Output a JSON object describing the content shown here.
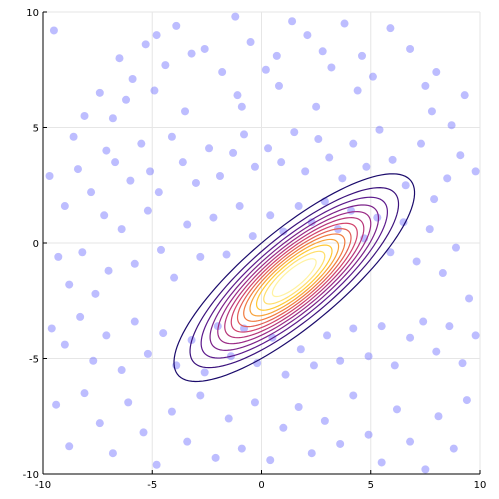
{
  "chart_data": {
    "type": "scatter",
    "title": "",
    "xlabel": "",
    "ylabel": "",
    "xlim": [
      -10,
      10
    ],
    "ylim": [
      -10,
      10
    ],
    "grid": true,
    "legend": "none",
    "x_ticks": [
      -10,
      -5,
      0,
      5,
      10
    ],
    "y_ticks": [
      -10,
      -5,
      0,
      5,
      10
    ],
    "x_tick_labels": [
      "-10",
      "-5",
      "0",
      "5",
      "10"
    ],
    "y_tick_labels": [
      "-10",
      "-5",
      "0",
      "5",
      "10"
    ],
    "point_color": "#5a5aff",
    "point_opacity": 0.4,
    "series": [
      {
        "values": [
          [
            -9.5,
            9.2
          ],
          [
            -8.6,
            4.6
          ],
          [
            -8.1,
            5.5
          ],
          [
            -7.4,
            6.5
          ],
          [
            -7.1,
            4.0
          ],
          [
            -6.5,
            8.0
          ],
          [
            -6.2,
            6.2
          ],
          [
            -5.9,
            7.1
          ],
          [
            -5.3,
            8.6
          ],
          [
            -4.8,
            9.0
          ],
          [
            -4.4,
            7.7
          ],
          [
            -3.9,
            9.4
          ],
          [
            -3.2,
            8.2
          ],
          [
            -2.6,
            8.4
          ],
          [
            -1.8,
            7.4
          ],
          [
            -1.2,
            9.8
          ],
          [
            -0.9,
            5.9
          ],
          [
            -0.5,
            8.7
          ],
          [
            0.2,
            7.5
          ],
          [
            0.7,
            8.1
          ],
          [
            1.4,
            9.6
          ],
          [
            2.1,
            9.0
          ],
          [
            2.8,
            8.3
          ],
          [
            3.2,
            7.6
          ],
          [
            3.8,
            9.5
          ],
          [
            4.6,
            8.1
          ],
          [
            5.1,
            7.2
          ],
          [
            5.9,
            9.3
          ],
          [
            6.8,
            8.4
          ],
          [
            7.5,
            6.8
          ],
          [
            8.0,
            7.4
          ],
          [
            8.7,
            5.1
          ],
          [
            9.3,
            6.4
          ],
          [
            9.8,
            3.1
          ],
          [
            -9.7,
            2.9
          ],
          [
            -9.0,
            1.6
          ],
          [
            -8.4,
            3.2
          ],
          [
            -7.8,
            2.2
          ],
          [
            -7.2,
            1.2
          ],
          [
            -6.7,
            3.5
          ],
          [
            -6.0,
            2.7
          ],
          [
            -5.5,
            4.3
          ],
          [
            -5.1,
            3.1
          ],
          [
            -4.7,
            2.2
          ],
          [
            -4.1,
            4.6
          ],
          [
            -3.6,
            3.5
          ],
          [
            -3.0,
            2.6
          ],
          [
            -2.4,
            4.1
          ],
          [
            -1.9,
            2.9
          ],
          [
            -1.3,
            3.9
          ],
          [
            -0.8,
            4.7
          ],
          [
            -0.3,
            3.3
          ],
          [
            0.3,
            4.1
          ],
          [
            0.9,
            3.5
          ],
          [
            1.5,
            4.8
          ],
          [
            2.0,
            3.1
          ],
          [
            2.6,
            4.5
          ],
          [
            3.1,
            3.7
          ],
          [
            3.7,
            2.8
          ],
          [
            4.2,
            4.3
          ],
          [
            4.8,
            3.3
          ],
          [
            5.4,
            4.9
          ],
          [
            6.0,
            3.6
          ],
          [
            6.6,
            2.5
          ],
          [
            7.3,
            4.3
          ],
          [
            7.9,
            1.9
          ],
          [
            8.5,
            2.8
          ],
          [
            9.1,
            3.8
          ],
          [
            -9.3,
            -0.6
          ],
          [
            -8.8,
            -1.8
          ],
          [
            -8.2,
            -0.4
          ],
          [
            -7.6,
            -2.2
          ],
          [
            -7.0,
            -1.2
          ],
          [
            -6.4,
            0.6
          ],
          [
            -5.8,
            -0.9
          ],
          [
            -5.2,
            1.4
          ],
          [
            -4.6,
            -0.3
          ],
          [
            -4.0,
            -1.5
          ],
          [
            -3.4,
            0.8
          ],
          [
            -2.8,
            -0.6
          ],
          [
            -2.2,
            1.1
          ],
          [
            -1.6,
            -0.5
          ],
          [
            -1.0,
            1.6
          ],
          [
            -0.4,
            0.3
          ],
          [
            0.4,
            1.2
          ],
          [
            1.0,
            0.5
          ],
          [
            1.7,
            1.6
          ],
          [
            2.3,
            0.9
          ],
          [
            2.9,
            1.8
          ],
          [
            3.5,
            0.6
          ],
          [
            4.1,
            1.4
          ],
          [
            4.7,
            0.2
          ],
          [
            5.3,
            1.1
          ],
          [
            5.9,
            -0.4
          ],
          [
            6.5,
            0.9
          ],
          [
            7.1,
            -0.8
          ],
          [
            7.7,
            0.6
          ],
          [
            8.3,
            -1.3
          ],
          [
            8.9,
            -0.2
          ],
          [
            9.5,
            -2.4
          ],
          [
            -9.6,
            -3.7
          ],
          [
            -9.0,
            -4.4
          ],
          [
            -8.3,
            -3.2
          ],
          [
            -7.7,
            -5.1
          ],
          [
            -7.1,
            -4.0
          ],
          [
            -6.4,
            -5.5
          ],
          [
            -5.8,
            -3.4
          ],
          [
            -5.2,
            -4.8
          ],
          [
            -4.5,
            -3.9
          ],
          [
            -3.9,
            -5.3
          ],
          [
            -3.2,
            -4.2
          ],
          [
            -2.6,
            -5.6
          ],
          [
            -2.0,
            -3.6
          ],
          [
            -1.4,
            -4.9
          ],
          [
            -0.8,
            -3.7
          ],
          [
            -0.2,
            -5.2
          ],
          [
            0.5,
            -4.1
          ],
          [
            1.1,
            -5.7
          ],
          [
            1.8,
            -4.6
          ],
          [
            2.4,
            -5.3
          ],
          [
            3.0,
            -4.0
          ],
          [
            3.6,
            -5.1
          ],
          [
            4.2,
            -3.7
          ],
          [
            4.9,
            -4.9
          ],
          [
            5.5,
            -3.6
          ],
          [
            6.1,
            -5.3
          ],
          [
            6.8,
            -4.1
          ],
          [
            7.4,
            -3.4
          ],
          [
            8.0,
            -4.7
          ],
          [
            8.6,
            -3.6
          ],
          [
            9.2,
            -5.2
          ],
          [
            9.8,
            -4.0
          ],
          [
            -9.4,
            -7.0
          ],
          [
            -8.8,
            -8.8
          ],
          [
            -8.1,
            -6.5
          ],
          [
            -7.4,
            -7.8
          ],
          [
            -6.8,
            -9.1
          ],
          [
            -6.1,
            -6.9
          ],
          [
            -5.4,
            -8.2
          ],
          [
            -4.8,
            -9.6
          ],
          [
            -4.1,
            -7.3
          ],
          [
            -3.4,
            -8.6
          ],
          [
            -2.8,
            -6.6
          ],
          [
            -2.1,
            -9.3
          ],
          [
            -1.5,
            -7.6
          ],
          [
            -0.9,
            -8.9
          ],
          [
            -0.3,
            -6.9
          ],
          [
            0.4,
            -9.4
          ],
          [
            1.0,
            -8.0
          ],
          [
            1.7,
            -7.1
          ],
          [
            2.3,
            -9.1
          ],
          [
            2.9,
            -7.7
          ],
          [
            3.6,
            -8.7
          ],
          [
            4.2,
            -6.6
          ],
          [
            4.9,
            -8.3
          ],
          [
            5.5,
            -9.5
          ],
          [
            6.2,
            -7.2
          ],
          [
            6.8,
            -8.6
          ],
          [
            7.5,
            -9.8
          ],
          [
            8.1,
            -7.5
          ],
          [
            8.8,
            -8.9
          ],
          [
            9.4,
            -6.8
          ],
          [
            -6.8,
            5.4
          ],
          [
            -3.5,
            5.7
          ],
          [
            0.8,
            6.8
          ],
          [
            4.4,
            6.6
          ],
          [
            7.8,
            5.7
          ],
          [
            -1.1,
            6.4
          ],
          [
            2.5,
            5.9
          ],
          [
            -4.9,
            6.6
          ]
        ]
      }
    ],
    "contour": {
      "center": [
        1.5,
        -1.5
      ],
      "sigma": [
        [
          6,
          4
        ],
        [
          4,
          4
        ]
      ],
      "levels": [
        0.08,
        0.15,
        0.22,
        0.29,
        0.36,
        0.43,
        0.5,
        0.57,
        0.64,
        0.71,
        0.78,
        0.85,
        0.92
      ],
      "colormap": [
        "#1a0a6b",
        "#5c1a8c",
        "#9a2a86",
        "#d1426b",
        "#f07a3e",
        "#ffc935",
        "#fff2a0"
      ]
    }
  }
}
